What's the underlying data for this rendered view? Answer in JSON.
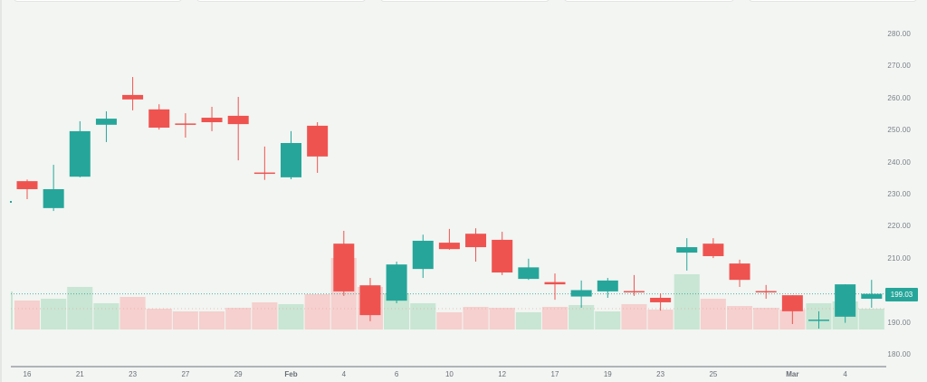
{
  "chart_data": {
    "type": "candlestick",
    "title": "",
    "xlabel": "",
    "ylabel": "",
    "ylim": [
      180,
      280
    ],
    "grid": false,
    "colors": {
      "up": "#26a69a",
      "down": "#ef5350",
      "up_volume": "#c8e6d3",
      "down_volume": "#f5d0ce",
      "background": "#f2f5f2",
      "axis_text": "#7b7f87"
    },
    "y_ticks": [
      "280.00",
      "270.00",
      "260.00",
      "250.00",
      "240.00",
      "230.00",
      "220.00",
      "210.00",
      "190.00",
      "180.00"
    ],
    "last_price": "199.03",
    "x_ticks": [
      {
        "label": "16",
        "index": 0
      },
      {
        "label": "21",
        "index": 2
      },
      {
        "label": "23",
        "index": 4
      },
      {
        "label": "27",
        "index": 6
      },
      {
        "label": "29",
        "index": 8
      },
      {
        "label": "Feb",
        "index": 10,
        "bold": true
      },
      {
        "label": "4",
        "index": 12
      },
      {
        "label": "6",
        "index": 14
      },
      {
        "label": "10",
        "index": 16
      },
      {
        "label": "12",
        "index": 18
      },
      {
        "label": "17",
        "index": 20
      },
      {
        "label": "19",
        "index": 22
      },
      {
        "label": "23",
        "index": 24
      },
      {
        "label": "25",
        "index": 26
      },
      {
        "label": "Mar",
        "index": 29,
        "bold": true
      },
      {
        "label": "4",
        "index": 31
      }
    ],
    "candles": [
      {
        "o": 234.2,
        "h": 234.7,
        "l": 228.6,
        "c": 231.7,
        "v": 32
      },
      {
        "o": 225.8,
        "h": 239.3,
        "l": 224.9,
        "c": 231.7,
        "v": 34
      },
      {
        "o": 235.6,
        "h": 252.9,
        "l": 235.4,
        "c": 249.8,
        "v": 47
      },
      {
        "o": 251.8,
        "h": 256.0,
        "l": 246.4,
        "c": 253.7,
        "v": 29
      },
      {
        "o": 261.1,
        "h": 266.7,
        "l": 256.3,
        "c": 259.7,
        "v": 36
      },
      {
        "o": 256.6,
        "h": 258.2,
        "l": 250.3,
        "c": 250.9,
        "v": 23
      },
      {
        "o": 252.2,
        "h": 255.4,
        "l": 247.8,
        "c": 252.0,
        "v": 20
      },
      {
        "o": 254.0,
        "h": 257.4,
        "l": 249.8,
        "c": 252.6,
        "v": 20
      },
      {
        "o": 254.6,
        "h": 260.5,
        "l": 240.7,
        "c": 252.0,
        "v": 24
      },
      {
        "o": 236.9,
        "h": 245.0,
        "l": 234.6,
        "c": 236.6,
        "v": 30
      },
      {
        "o": 235.4,
        "h": 249.8,
        "l": 234.8,
        "c": 246.1,
        "v": 28
      },
      {
        "o": 251.5,
        "h": 252.6,
        "l": 236.8,
        "c": 241.9,
        "v": 39
      },
      {
        "o": 214.7,
        "h": 218.7,
        "l": 198.4,
        "c": 199.8,
        "v": 79
      },
      {
        "o": 201.7,
        "h": 204.0,
        "l": 190.5,
        "c": 192.4,
        "v": 47
      },
      {
        "o": 196.9,
        "h": 209.1,
        "l": 196.1,
        "c": 208.2,
        "v": 40
      },
      {
        "o": 206.8,
        "h": 217.5,
        "l": 204.0,
        "c": 215.6,
        "v": 29
      },
      {
        "o": 215.0,
        "h": 219.3,
        "l": 212.8,
        "c": 213.0,
        "v": 19
      },
      {
        "o": 217.8,
        "h": 219.5,
        "l": 209.1,
        "c": 213.6,
        "v": 25
      },
      {
        "o": 215.9,
        "h": 218.4,
        "l": 204.9,
        "c": 205.7,
        "v": 24
      },
      {
        "o": 203.7,
        "h": 210.0,
        "l": 203.4,
        "c": 207.3,
        "v": 19
      },
      {
        "o": 202.7,
        "h": 205.4,
        "l": 197.2,
        "c": 202.0,
        "v": 25
      },
      {
        "o": 198.2,
        "h": 203.2,
        "l": 194.7,
        "c": 200.2,
        "v": 27
      },
      {
        "o": 199.8,
        "h": 204.0,
        "l": 197.8,
        "c": 203.2,
        "v": 20
      },
      {
        "o": 199.9,
        "h": 204.9,
        "l": 198.4,
        "c": 199.8,
        "v": 28
      },
      {
        "o": 197.8,
        "h": 199.2,
        "l": 193.8,
        "c": 196.4,
        "v": 22
      },
      {
        "o": 211.9,
        "h": 216.4,
        "l": 206.3,
        "c": 213.6,
        "v": 61
      },
      {
        "o": 214.7,
        "h": 216.4,
        "l": 210.2,
        "c": 210.8,
        "v": 34
      },
      {
        "o": 208.5,
        "h": 209.7,
        "l": 201.2,
        "c": 203.4,
        "v": 26
      },
      {
        "o": 199.9,
        "h": 201.8,
        "l": 197.5,
        "c": 199.8,
        "v": 24
      },
      {
        "o": 198.6,
        "h": 198.6,
        "l": 189.6,
        "c": 193.6,
        "v": 22
      },
      {
        "o": 191.0,
        "h": 193.6,
        "l": 188.2,
        "c": 191.0,
        "v": 29
      },
      {
        "o": 191.9,
        "h": 202.0,
        "l": 190.0,
        "c": 202.0,
        "v": 31
      },
      {
        "o": 197.5,
        "h": 203.4,
        "l": 194.7,
        "c": 199.03,
        "v": 23
      }
    ]
  }
}
